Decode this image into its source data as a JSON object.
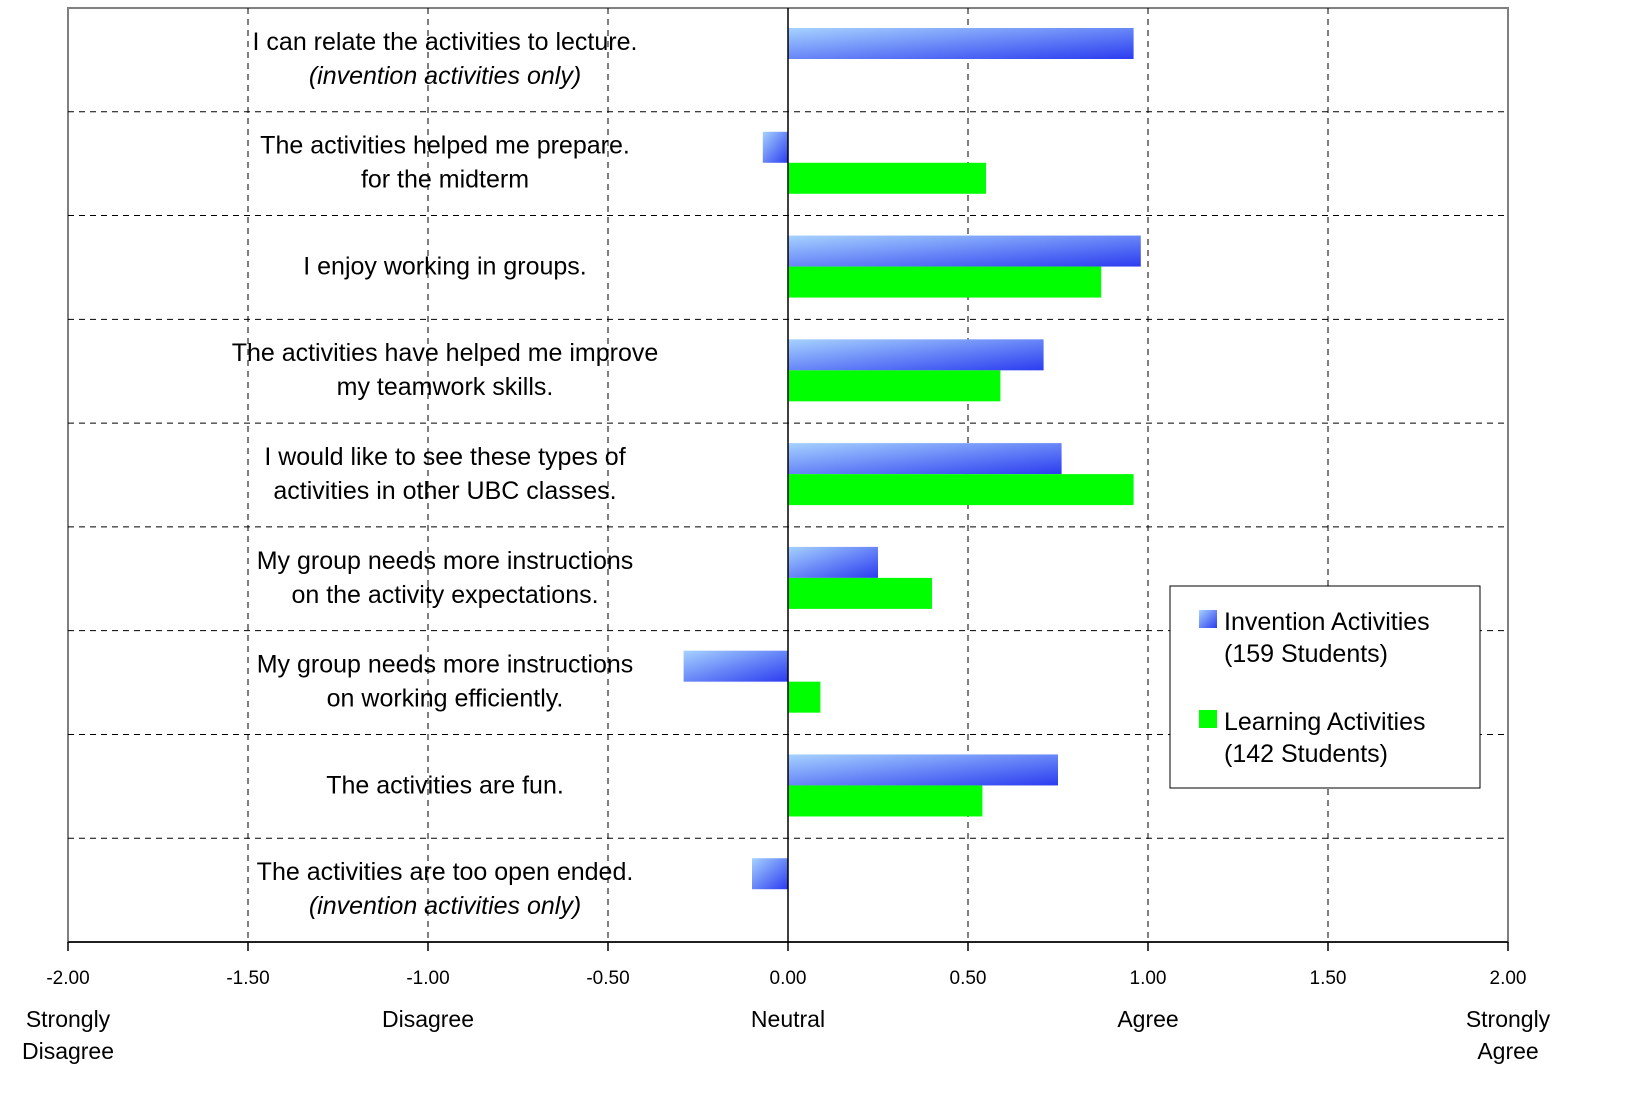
{
  "chart_data": {
    "type": "bar",
    "orientation": "horizontal",
    "categories": [
      {
        "lines": [
          "I can relate the activities to lecture.",
          "(invention activities only)"
        ],
        "italic_line": 1
      },
      {
        "lines": [
          "The activities helped me prepare.",
          "for the midterm"
        ],
        "italic_line": -1
      },
      {
        "lines": [
          "I enjoy working in groups."
        ],
        "italic_line": -1
      },
      {
        "lines": [
          "The activities have helped me improve",
          "my teamwork skills."
        ],
        "italic_line": -1
      },
      {
        "lines": [
          "I would like to see these types of",
          "activities in other UBC classes."
        ],
        "italic_line": -1
      },
      {
        "lines": [
          "My group needs more instructions",
          "on the activity expectations."
        ],
        "italic_line": -1
      },
      {
        "lines": [
          "My group needs more instructions",
          "on working efficiently."
        ],
        "italic_line": -1
      },
      {
        "lines": [
          "The activities are fun."
        ],
        "italic_line": -1
      },
      {
        "lines": [
          "The activities are too open ended.",
          "(invention activities only)"
        ],
        "italic_line": 1
      }
    ],
    "series": [
      {
        "name_lines": [
          "Invention Activities",
          "(159 Students)"
        ],
        "color": "#2b3cf0",
        "color_light": "#a6d2ff",
        "values": [
          0.96,
          -0.07,
          0.98,
          0.71,
          0.76,
          0.25,
          -0.29,
          0.75,
          -0.1
        ]
      },
      {
        "name_lines": [
          "Learning Activities",
          "(142 Students)"
        ],
        "color": "#00ff00",
        "values": [
          null,
          0.55,
          0.87,
          0.59,
          0.96,
          0.4,
          0.09,
          0.54,
          null
        ]
      }
    ],
    "xlim": [
      -2.0,
      2.0
    ],
    "xticks": [
      "-2.00",
      "-1.50",
      "-1.00",
      "-0.50",
      "0.00",
      "0.50",
      "1.00",
      "1.50",
      "2.00"
    ],
    "xtick_values": [
      -2.0,
      -1.5,
      -1.0,
      -0.5,
      0.0,
      0.5,
      1.0,
      1.5,
      2.0
    ],
    "scale_anchors": [
      {
        "value": -2.0,
        "lines": [
          "Strongly",
          "Disagree"
        ]
      },
      {
        "value": -1.0,
        "lines": [
          "Disagree"
        ]
      },
      {
        "value": 0.0,
        "lines": [
          "Neutral"
        ]
      },
      {
        "value": 1.0,
        "lines": [
          "Agree"
        ]
      },
      {
        "value": 2.0,
        "lines": [
          "Strongly",
          "Agree"
        ]
      }
    ],
    "grid": true,
    "legend_position": "right"
  }
}
